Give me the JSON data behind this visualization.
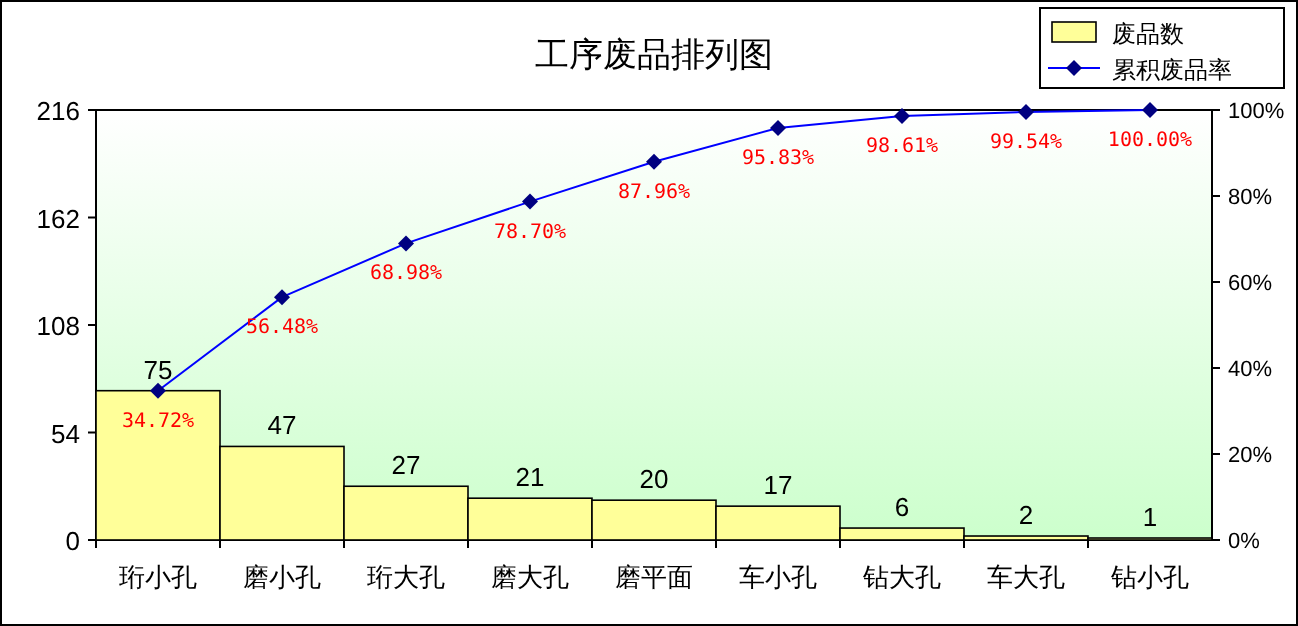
{
  "chart_data": {
    "type": "bar",
    "title": "工序废品排列图",
    "categories": [
      "珩小孔",
      "磨小孔",
      "珩大孔",
      "磨大孔",
      "磨平面",
      "车小孔",
      "钻大孔",
      "车大孔",
      "钻小孔"
    ],
    "series": [
      {
        "name": "废品数",
        "color": "#ffff99",
        "values": [
          75,
          47,
          27,
          21,
          20,
          17,
          6,
          2,
          1
        ],
        "value_labels": [
          "75",
          "47",
          "27",
          "21",
          "20",
          "17",
          "6",
          "2",
          "1"
        ]
      },
      {
        "name": "累积废品率",
        "type": "line",
        "axis": "y2",
        "color": "#000080",
        "marker": "diamond",
        "values": [
          34.72,
          56.48,
          68.98,
          78.7,
          87.96,
          95.83,
          98.61,
          99.54,
          100.0
        ],
        "value_labels": [
          "34.72%",
          "56.48%",
          "68.98%",
          "78.70%",
          "87.96%",
          "95.83%",
          "98.61%",
          "99.54%",
          "100.00%"
        ]
      }
    ],
    "ylim": [
      0,
      216
    ],
    "yticks": [
      0,
      54,
      108,
      162,
      216
    ],
    "y2lim": [
      0,
      100
    ],
    "y2ticks": [
      {
        "value": 0,
        "label": "0%"
      },
      {
        "value": 20,
        "label": "20%"
      },
      {
        "value": 40,
        "label": "40%"
      },
      {
        "value": 60,
        "label": "60%"
      },
      {
        "value": 80,
        "label": "80%"
      },
      {
        "value": 100,
        "label": "100%"
      }
    ],
    "legend": "top right"
  }
}
